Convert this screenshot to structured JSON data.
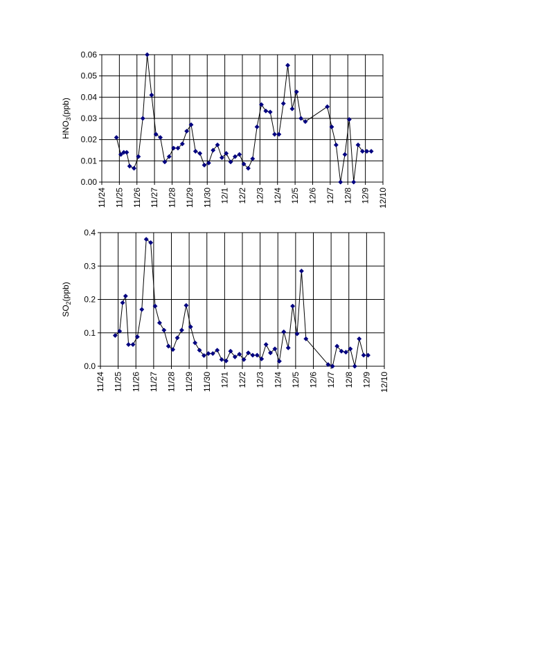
{
  "chart_data": [
    {
      "type": "line",
      "ylabel": "HNO",
      "ylabel_sub": "3",
      "ylabel_suffix": "(ppb)",
      "ylim": [
        0,
        0.06
      ],
      "yticks": [
        0.0,
        0.01,
        0.02,
        0.03,
        0.04,
        0.05,
        0.06
      ],
      "ytick_labels": [
        "0.00",
        "0.01",
        "0.02",
        "0.03",
        "0.04",
        "0.05",
        "0.06"
      ],
      "xlim": [
        "11/24",
        "12/10"
      ],
      "xtick_labels": [
        "11/24",
        "11/25",
        "11/26",
        "11/27",
        "11/28",
        "11/29",
        "11/30",
        "12/1",
        "12/2",
        "12/3",
        "12/4",
        "12/5",
        "12/6",
        "12/7",
        "12/8",
        "12/9",
        "12/10"
      ],
      "grid": true,
      "legend": false,
      "series": [
        {
          "color": "#000080",
          "marker": "diamond",
          "x": [
            "11/24 20:00",
            "11/25 02:00",
            "11/25 06:00",
            "11/25 10:00",
            "11/25 14:00",
            "11/25 20:00",
            "11/26 02:00",
            "11/26 08:00",
            "11/26 14:00",
            "11/26 20:00",
            "11/27 02:00",
            "11/27 08:00",
            "11/27 14:00",
            "11/27 20:00",
            "11/28 02:00",
            "11/28 08:00",
            "11/28 14:00",
            "11/28 20:00",
            "11/29 02:00",
            "11/29 08:00",
            "11/29 14:00",
            "11/29 20:00",
            "11/30 02:00",
            "11/30 08:00",
            "11/30 14:00",
            "11/30 20:00",
            "12/1 02:00",
            "12/1 08:00",
            "12/1 14:00",
            "12/1 20:00",
            "12/2 02:00",
            "12/2 08:00",
            "12/2 14:00",
            "12/2 20:00",
            "12/3 02:00",
            "12/3 08:00",
            "12/3 14:00",
            "12/3 20:00",
            "12/4 02:00",
            "12/4 08:00",
            "12/4 14:00",
            "12/4 20:00",
            "12/5 02:00",
            "12/5 08:00",
            "12/5 14:00",
            "12/6 20:00",
            "12/7 02:00",
            "12/7 08:00",
            "12/7 14:00",
            "12/7 20:00",
            "12/8 02:00",
            "12/8 08:00",
            "12/8 14:00",
            "12/8 20:00",
            "12/9 02:00",
            "12/9 08:00"
          ],
          "y": [
            0.021,
            0.013,
            0.014,
            0.014,
            0.0075,
            0.0065,
            0.012,
            0.03,
            0.06,
            0.041,
            0.0225,
            0.021,
            0.0095,
            0.012,
            0.016,
            0.016,
            0.018,
            0.024,
            0.027,
            0.0145,
            0.0135,
            0.008,
            0.009,
            0.015,
            0.0175,
            0.0115,
            0.0135,
            0.0095,
            0.012,
            0.013,
            0.0085,
            0.0065,
            0.011,
            0.026,
            0.0365,
            0.0335,
            0.033,
            0.0225,
            0.0225,
            0.037,
            0.055,
            0.0345,
            0.0425,
            0.03,
            0.0285,
            0.0355,
            0.026,
            0.0175,
            0.0,
            0.013,
            0.0295,
            0.0,
            0.0175,
            0.0145,
            0.0145,
            0.0145
          ]
        }
      ]
    },
    {
      "type": "line",
      "ylabel": "SO",
      "ylabel_sub": "2",
      "ylabel_suffix": "(ppb)",
      "ylim": [
        0,
        0.4
      ],
      "yticks": [
        0.0,
        0.1,
        0.2,
        0.3,
        0.4
      ],
      "ytick_labels": [
        "0.0",
        "0.1",
        "0.2",
        "0.3",
        "0.4"
      ],
      "xlim": [
        "11/24",
        "12/10"
      ],
      "xtick_labels": [
        "11/24",
        "11/25",
        "11/26",
        "11/27",
        "11/28",
        "11/29",
        "11/30",
        "12/1",
        "12/2",
        "12/3",
        "12/4",
        "12/5",
        "12/6",
        "12/7",
        "12/8",
        "12/9",
        "12/10"
      ],
      "grid": true,
      "legend": false,
      "series": [
        {
          "color": "#000080",
          "marker": "diamond",
          "x": [
            "11/24 20:00",
            "11/25 02:00",
            "11/25 06:00",
            "11/25 10:00",
            "11/25 14:00",
            "11/25 20:00",
            "11/26 02:00",
            "11/26 08:00",
            "11/26 14:00",
            "11/26 20:00",
            "11/27 02:00",
            "11/27 08:00",
            "11/27 14:00",
            "11/27 20:00",
            "11/28 02:00",
            "11/28 08:00",
            "11/28 14:00",
            "11/28 20:00",
            "11/29 02:00",
            "11/29 08:00",
            "11/29 14:00",
            "11/29 20:00",
            "11/30 02:00",
            "11/30 08:00",
            "11/30 14:00",
            "11/30 20:00",
            "12/1 02:00",
            "12/1 08:00",
            "12/1 14:00",
            "12/1 20:00",
            "12/2 02:00",
            "12/2 08:00",
            "12/2 14:00",
            "12/2 20:00",
            "12/3 02:00",
            "12/3 08:00",
            "12/3 14:00",
            "12/3 20:00",
            "12/4 02:00",
            "12/4 08:00",
            "12/4 14:00",
            "12/4 20:00",
            "12/5 02:00",
            "12/5 08:00",
            "12/5 14:00",
            "12/6 20:00",
            "12/7 02:00",
            "12/7 08:00",
            "12/7 14:00",
            "12/7 20:00",
            "12/8 02:00",
            "12/8 08:00",
            "12/8 14:00",
            "12/8 20:00",
            "12/9 02:00"
          ],
          "y": [
            0.092,
            0.105,
            0.19,
            0.21,
            0.065,
            0.065,
            0.088,
            0.17,
            0.38,
            0.37,
            0.18,
            0.13,
            0.108,
            0.06,
            0.05,
            0.085,
            0.108,
            0.182,
            0.118,
            0.07,
            0.048,
            0.032,
            0.038,
            0.038,
            0.048,
            0.02,
            0.016,
            0.045,
            0.028,
            0.036,
            0.02,
            0.04,
            0.033,
            0.033,
            0.022,
            0.065,
            0.04,
            0.052,
            0.015,
            0.103,
            0.055,
            0.18,
            0.097,
            0.285,
            0.082,
            0.005,
            0.0,
            0.06,
            0.045,
            0.042,
            0.052,
            0.0,
            0.082,
            0.033,
            0.033
          ]
        }
      ]
    }
  ]
}
